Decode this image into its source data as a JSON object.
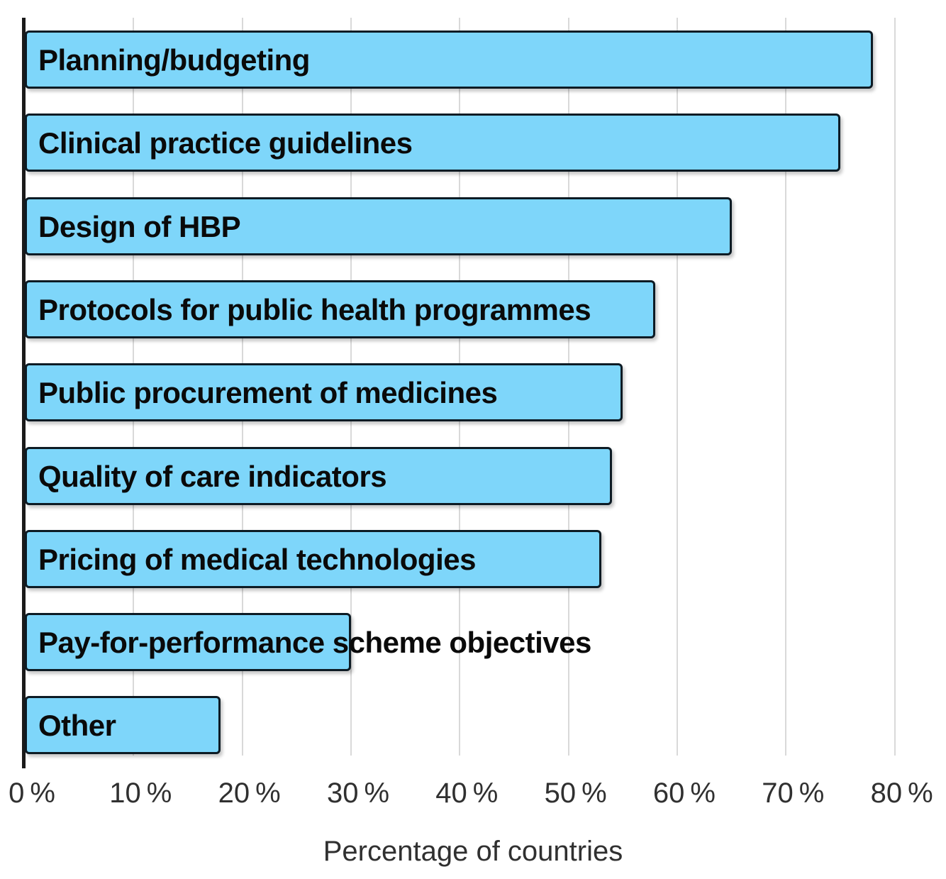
{
  "chart_data": {
    "type": "bar",
    "orientation": "horizontal",
    "title": "",
    "xlabel": "Percentage of countries",
    "ylabel": "",
    "categories": [
      "Planning/budgeting",
      "Clinical practice guidelines",
      "Design of HBP",
      "Protocols for public health programmes",
      "Public procurement of medicines",
      "Quality of care indicators",
      "Pricing of medical technologies",
      "Pay-for-performance scheme objectives",
      "Other"
    ],
    "values": [
      78,
      75,
      65,
      58,
      55,
      54,
      53,
      30,
      18
    ],
    "xlim": [
      0,
      80
    ],
    "x_ticks": [
      0,
      10,
      20,
      30,
      40,
      50,
      60,
      70,
      80
    ],
    "x_tick_labels": [
      "0 %",
      "10 %",
      "20 %",
      "30 %",
      "40 %",
      "50 %",
      "60 %",
      "70 %",
      "80 %"
    ],
    "grid": "vertical",
    "legend_position": "none",
    "colors": {
      "bar_fill": "#7ED6FA",
      "bar_border": "#0d1b24",
      "gridline": "#d9d9d9",
      "axis_line": "#1a1a1a",
      "tick_text": "#303030",
      "category_text": "#0a0a0a"
    }
  }
}
